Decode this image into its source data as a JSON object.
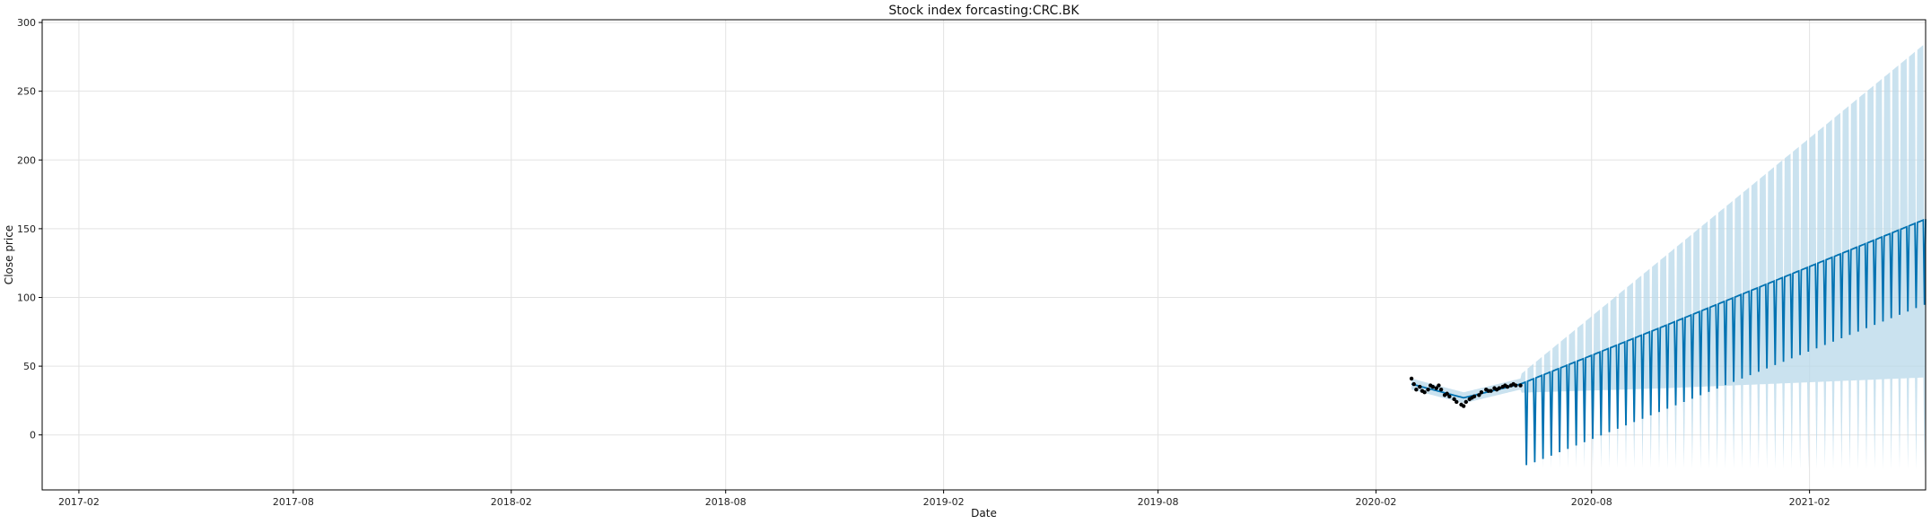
{
  "chart_data": {
    "type": "line",
    "title": "Stock index forcasting:CRC.BK",
    "xlabel": "Date",
    "ylabel": "Close price",
    "x_ticks": [
      "2017-02",
      "2017-08",
      "2018-02",
      "2018-08",
      "2019-02",
      "2019-08",
      "2020-02",
      "2020-08",
      "2021-02"
    ],
    "y_ticks": [
      "0",
      "50",
      "100",
      "150",
      "200",
      "250",
      "300"
    ],
    "x_range": [
      "2017-01-01",
      "2021-05-10"
    ],
    "ylim": [
      -40,
      302
    ],
    "grid": true,
    "colors": {
      "forecast": "#0072B2",
      "uncertainty": "#B8D8EA",
      "observed": "#000000",
      "grid": "#e3e3e3",
      "axis": "#000000"
    },
    "observed": [
      [
        "2020-03-02",
        41
      ],
      [
        "2020-03-04",
        37
      ],
      [
        "2020-03-06",
        33
      ],
      [
        "2020-03-09",
        35
      ],
      [
        "2020-03-11",
        32
      ],
      [
        "2020-03-13",
        31
      ],
      [
        "2020-03-16",
        33
      ],
      [
        "2020-03-18",
        36
      ],
      [
        "2020-03-20",
        35
      ],
      [
        "2020-03-23",
        34
      ],
      [
        "2020-03-25",
        36
      ],
      [
        "2020-03-27",
        33
      ],
      [
        "2020-03-30",
        29
      ],
      [
        "2020-04-01",
        30
      ],
      [
        "2020-04-03",
        28
      ],
      [
        "2020-04-07",
        26
      ],
      [
        "2020-04-09",
        24
      ],
      [
        "2020-04-13",
        22
      ],
      [
        "2020-04-15",
        21
      ],
      [
        "2020-04-17",
        24
      ],
      [
        "2020-04-20",
        26
      ],
      [
        "2020-04-22",
        27
      ],
      [
        "2020-04-24",
        28
      ],
      [
        "2020-04-28",
        29
      ],
      [
        "2020-04-30",
        31
      ],
      [
        "2020-05-04",
        33
      ],
      [
        "2020-05-06",
        32
      ],
      [
        "2020-05-08",
        32
      ],
      [
        "2020-05-11",
        34
      ],
      [
        "2020-05-13",
        33
      ],
      [
        "2020-05-15",
        34
      ],
      [
        "2020-05-18",
        35
      ],
      [
        "2020-05-20",
        36
      ],
      [
        "2020-05-22",
        35
      ],
      [
        "2020-05-25",
        36
      ],
      [
        "2020-05-27",
        37
      ],
      [
        "2020-05-29",
        36
      ],
      [
        "2020-06-02",
        36
      ]
    ],
    "forecast": {
      "start": "2020-03-02",
      "history_end": "2020-06-02",
      "end": "2021-05-10",
      "trend_anchors": [
        [
          "2020-03-02",
          37
        ],
        [
          "2020-04-15",
          27
        ],
        [
          "2020-06-02",
          37
        ],
        [
          "2020-10-01",
          72
        ],
        [
          "2021-05-10",
          137
        ]
      ],
      "weekly_peak_offset": 20,
      "weekday_trough": {
        "2020-06-08": -22,
        "2021-05-10": 95
      },
      "upper_band": {
        "2020-06-02": 44,
        "2021-05-10": 285
      },
      "lower_band": {
        "2020-06-02": -24,
        "2021-05-10": -25
      }
    }
  }
}
